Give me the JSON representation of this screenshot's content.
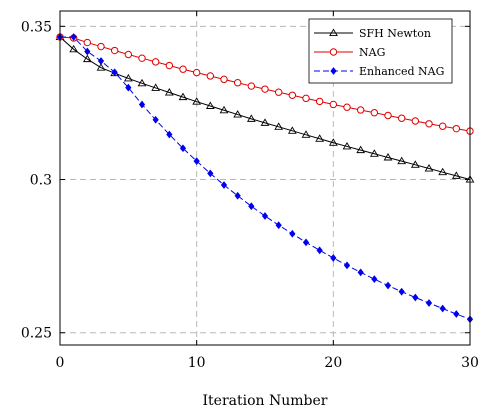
{
  "chart_data": {
    "type": "line",
    "title": "",
    "xlabel": "Iteration Number",
    "ylabel": "",
    "xlim": [
      0,
      30
    ],
    "ylim": [
      0.246,
      0.355
    ],
    "xticks": [
      0,
      10,
      20,
      30
    ],
    "yticks": [
      0.25,
      0.3,
      0.35
    ],
    "xtick_labels": [
      "0",
      "10",
      "20",
      "30"
    ],
    "ytick_labels": [
      "0.25",
      "0.3",
      "0.35"
    ],
    "grid": true,
    "legend_position": "top-right",
    "x": [
      0,
      1,
      2,
      3,
      4,
      5,
      6,
      7,
      8,
      9,
      10,
      11,
      12,
      13,
      14,
      15,
      16,
      17,
      18,
      19,
      20,
      21,
      22,
      23,
      24,
      25,
      26,
      27,
      28,
      29,
      30
    ],
    "series": [
      {
        "name": "SFH Newton",
        "color": "#000000",
        "marker": "triangle",
        "line_style": "solid",
        "values": [
          0.3465,
          0.3425,
          0.3393,
          0.3365,
          0.3347,
          0.333,
          0.3314,
          0.3299,
          0.3284,
          0.3269,
          0.3254,
          0.324,
          0.3226,
          0.3212,
          0.3198,
          0.3185,
          0.3172,
          0.3159,
          0.3146,
          0.3133,
          0.312,
          0.3108,
          0.3096,
          0.3084,
          0.3072,
          0.306,
          0.3048,
          0.3036,
          0.3024,
          0.3012,
          0.3
        ]
      },
      {
        "name": "NAG",
        "color": "#e00000",
        "marker": "circle",
        "line_style": "solid",
        "values": [
          0.3465,
          0.3462,
          0.3447,
          0.3434,
          0.3421,
          0.3408,
          0.3396,
          0.3384,
          0.3372,
          0.336,
          0.3349,
          0.3338,
          0.3327,
          0.3316,
          0.3305,
          0.3295,
          0.3285,
          0.3275,
          0.3265,
          0.3255,
          0.3245,
          0.3236,
          0.3227,
          0.3218,
          0.3209,
          0.32,
          0.3191,
          0.3182,
          0.3174,
          0.3166,
          0.3158
        ]
      },
      {
        "name": "Enhanced NAG",
        "color": "#0000ee",
        "marker": "diamond",
        "line_style": "dashed",
        "values": [
          0.3465,
          0.3465,
          0.3418,
          0.3387,
          0.335,
          0.33,
          0.3245,
          0.3195,
          0.3147,
          0.3102,
          0.306,
          0.302,
          0.2982,
          0.2947,
          0.2913,
          0.2881,
          0.2851,
          0.2823,
          0.2795,
          0.2769,
          0.2744,
          0.272,
          0.2697,
          0.2675,
          0.2654,
          0.2634,
          0.2615,
          0.2597,
          0.2579,
          0.2561,
          0.2544
        ]
      }
    ]
  }
}
